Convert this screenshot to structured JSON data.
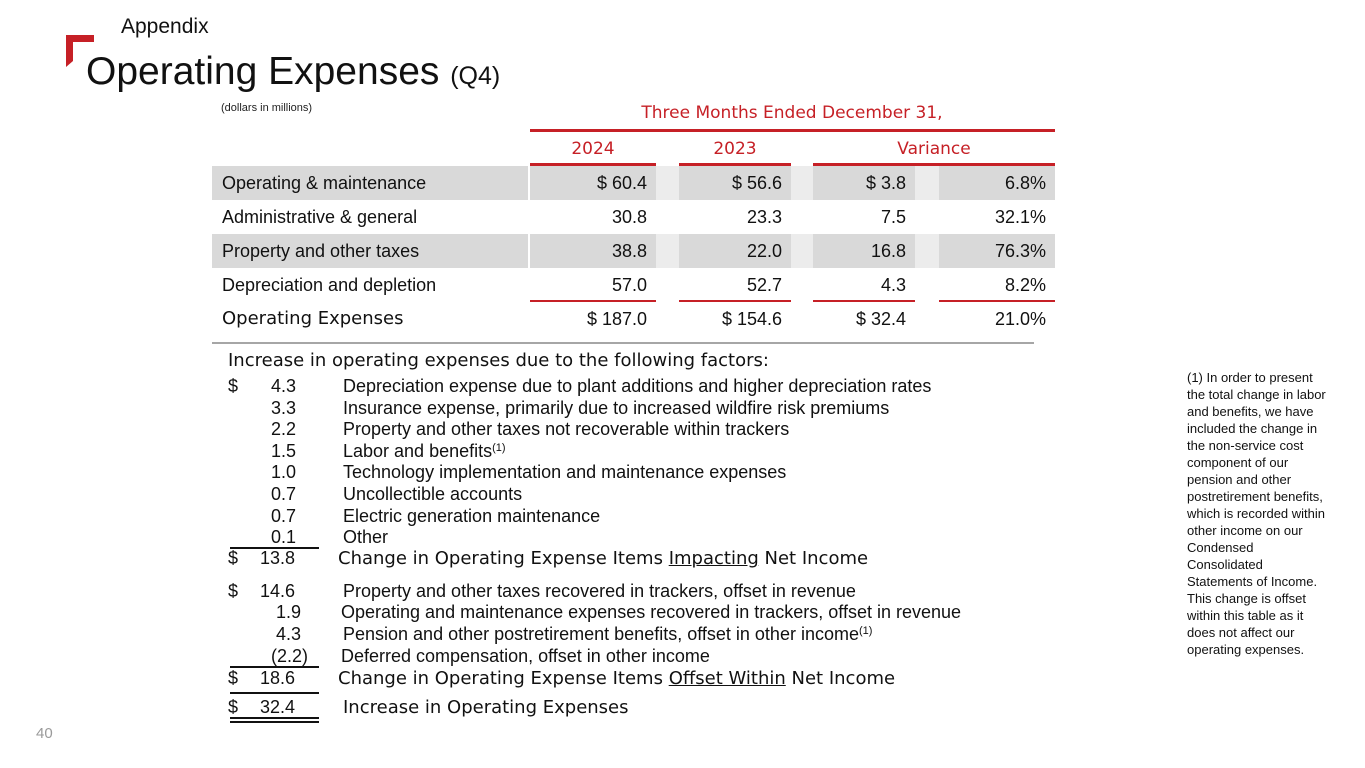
{
  "header": {
    "section": "Appendix",
    "title": "Operating Expenses",
    "title_suffix": "(Q4)",
    "units_note": "(dollars in millions)"
  },
  "table": {
    "period_header": "Three Months Ended December 31,",
    "columns": [
      "2024",
      "2023",
      "Variance"
    ],
    "rows": [
      {
        "label": "Operating & maintenance",
        "y2024": "$ 60.4",
        "y2023": "$ 56.6",
        "var_amt": "$ 3.8",
        "var_pct": "6.8%"
      },
      {
        "label": "Administrative & general",
        "y2024": "30.8",
        "y2023": "23.3",
        "var_amt": "7.5",
        "var_pct": "32.1%"
      },
      {
        "label": "Property and other taxes",
        "y2024": "38.8",
        "y2023": "22.0",
        "var_amt": "16.8",
        "var_pct": "76.3%"
      },
      {
        "label": "Depreciation and depletion",
        "y2024": "57.0",
        "y2023": "52.7",
        "var_amt": "4.3",
        "var_pct": "8.2%"
      },
      {
        "label": "Operating Expenses",
        "y2024": "$ 187.0",
        "y2023": "$ 154.6",
        "var_amt": "$ 32.4",
        "var_pct": "21.0%"
      }
    ]
  },
  "factors": {
    "heading": "Increase in operating expenses due to the following factors:",
    "dollar_sign": "$",
    "impacting": [
      {
        "amount": "4.3",
        "text": "Depreciation expense due to plant additions and higher depreciation rates"
      },
      {
        "amount": "3.3",
        "text": "Insurance expense, primarily due to increased wildfire risk premiums"
      },
      {
        "amount": "2.2",
        "text": "Property and other taxes not recoverable within trackers"
      },
      {
        "amount": "1.5",
        "text": "Labor and benefits",
        "footnote": "(1)"
      },
      {
        "amount": "1.0",
        "text": "Technology implementation and maintenance expenses"
      },
      {
        "amount": "0.7",
        "text": "Uncollectible accounts"
      },
      {
        "amount": "0.7",
        "text": "Electric generation maintenance"
      },
      {
        "amount": "0.1",
        "text": "Other"
      }
    ],
    "impacting_total": {
      "amount": "13.8",
      "prefix": "Change in Operating Expense Items",
      "emph": "Impacting",
      "suffix": "Net Income"
    },
    "offset": [
      {
        "amount": "14.6",
        "text": "Property and other taxes recovered in trackers, offset in revenue"
      },
      {
        "amount": "1.9",
        "text": "Operating and maintenance expenses recovered in trackers, offset in revenue"
      },
      {
        "amount": "4.3",
        "text": "Pension and other postretirement benefits, offset in other income",
        "footnote": "(1)"
      },
      {
        "amount": "(2.2)",
        "text": "Deferred compensation, offset in other income"
      }
    ],
    "offset_total": {
      "amount": "18.6",
      "prefix": "Change in Operating Expense Items",
      "emph": "Offset Within",
      "suffix": "Net Income"
    },
    "grand_total": {
      "amount": "32.4",
      "text": "Increase in Operating Expenses"
    }
  },
  "footnote": "(1) In order to present the total change in labor and benefits, we have included the change in the non-service cost component of our pension and other postretirement benefits, which is recorded within other income on our Condensed Consolidated Statements of Income. This change is offset within this table as it does not affect our operating expenses.",
  "page_number": "40",
  "colors": {
    "accent": "#c62026",
    "shade": "#d9d9d9",
    "rule": "#a6a6a6"
  }
}
